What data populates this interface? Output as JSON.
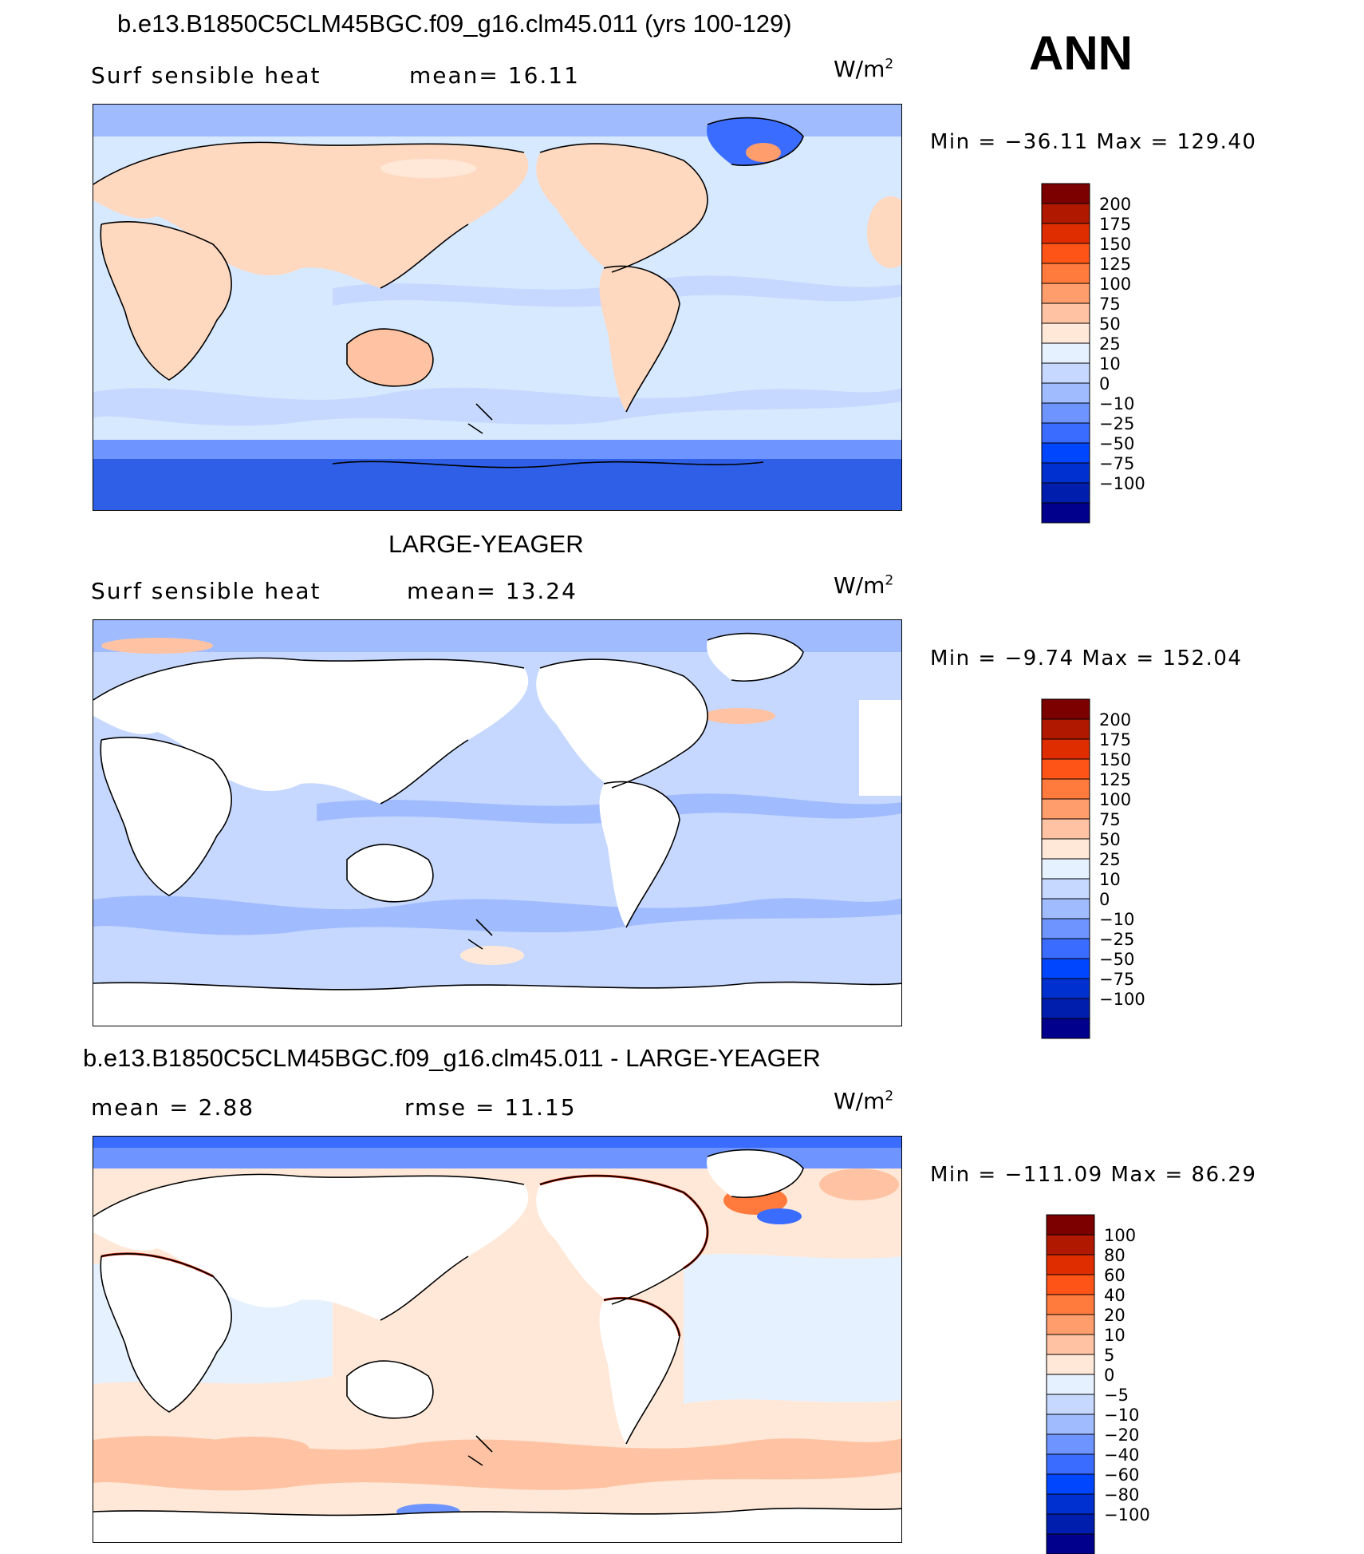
{
  "season": "ANN",
  "colors": {
    "abs_scale": [
      "#00008c",
      "#001eae",
      "#0031d0",
      "#0046ff",
      "#3a6cff",
      "#6d94ff",
      "#a0bcff",
      "#c6d8ff",
      "#e6f1ff",
      "#ffe8d8",
      "#ffc3a3",
      "#ff9d6c",
      "#ff7a3c",
      "#ff5418",
      "#e02d00",
      "#b01800",
      "#7c0000"
    ],
    "diff_scale": [
      "#00008c",
      "#001eae",
      "#0031d0",
      "#0046ff",
      "#3a6cff",
      "#6d94ff",
      "#a0bcff",
      "#c6d8ff",
      "#e6f1ff",
      "#ffe8d8",
      "#ffc3a3",
      "#ff9d6c",
      "#ff7a3c",
      "#ff5418",
      "#e02d00",
      "#b01800",
      "#7c0000"
    ],
    "ocean_light": "#d7e9ff",
    "land_warm": "#ffd8c0",
    "polar_blue": "#6d94ff",
    "antarctic_blue": "#2f5fe6"
  },
  "panels": [
    {
      "title": "b.e13.B1850C5CLM45BGC.f09_g16.clm45.011 (yrs 100-129)",
      "left_text": "Surf sensible heat",
      "stat_text": "mean=   16.11",
      "units": "W/m",
      "units_sup": "2",
      "minmax": "Min  =  −36.11  Max  =  129.40",
      "colorbar_labels": [
        "200",
        "175",
        "150",
        "125",
        "100",
        "75",
        "50",
        "25",
        "10",
        "0",
        "−10",
        "−25",
        "−50",
        "−75",
        "−100"
      ]
    },
    {
      "title": "LARGE-YEAGER",
      "left_text": "Surf sensible heat",
      "stat_text": "mean=   13.24",
      "units": "W/m",
      "units_sup": "2",
      "minmax": "Min  =   −9.74  Max  =  152.04",
      "colorbar_labels": [
        "200",
        "175",
        "150",
        "125",
        "100",
        "75",
        "50",
        "25",
        "10",
        "0",
        "−10",
        "−25",
        "−50",
        "−75",
        "−100"
      ]
    },
    {
      "title": "b.e13.B1850C5CLM45BGC.f09_g16.clm45.011 - LARGE-YEAGER",
      "left_text": "mean  =     2.88",
      "stat_text": "rmse  =    11.15",
      "units": "W/m",
      "units_sup": "2",
      "minmax": "Min  =  −111.09  Max  =    86.29",
      "colorbar_labels": [
        "100",
        "80",
        "60",
        "40",
        "20",
        "10",
        "5",
        "0",
        "−5",
        "−10",
        "−20",
        "−40",
        "−60",
        "−80",
        "−100"
      ]
    }
  ]
}
